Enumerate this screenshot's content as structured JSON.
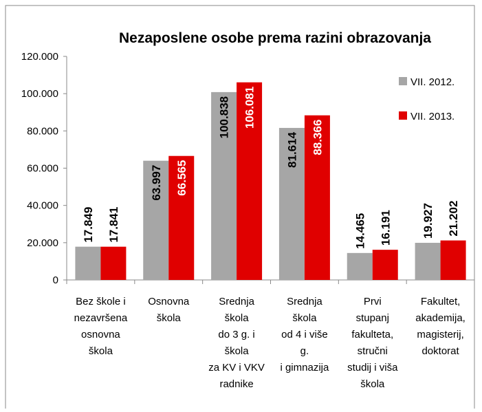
{
  "chart_data": {
    "type": "bar",
    "title": "Nezaposlene osobe prema razini obrazovanja",
    "categories": [
      [
        "Bez škole i",
        "nezavršena",
        "osnovna",
        "škola"
      ],
      [
        "Osnovna",
        "škola"
      ],
      [
        "Srednja",
        "škola",
        "do 3 g. i",
        "škola",
        "za KV i VKV",
        "radnike"
      ],
      [
        "Srednja",
        "škola",
        "od 4 i više",
        "g.",
        "i gimnazija"
      ],
      [
        "Prvi",
        "stupanj",
        "fakulteta,",
        "stručni",
        "studij i viša",
        "škola"
      ],
      [
        "Fakultet,",
        "akademija,",
        "magisterij,",
        "doktorat"
      ]
    ],
    "series": [
      {
        "name": "VII. 2012.",
        "color": "#a6a6a6",
        "values": [
          17849,
          63997,
          100838,
          81614,
          14465,
          19927
        ],
        "value_labels": [
          "17.849",
          "63.997",
          "100.838",
          "81.614",
          "14.465",
          "19.927"
        ]
      },
      {
        "name": "VII. 2013.",
        "color": "#e00000",
        "values": [
          17841,
          66565,
          106081,
          88366,
          16191,
          21202
        ],
        "value_labels": [
          "17.841",
          "66.565",
          "106.081",
          "88.366",
          "16.191",
          "21.202"
        ]
      }
    ],
    "ylim": [
      0,
      120000
    ],
    "yticks": [
      0,
      {
        "value": 20000,
        "label": "20.000"
      },
      {
        "value": 40000,
        "label": "40.000"
      },
      {
        "value": 60000,
        "label": "60.000"
      },
      {
        "value": 80000,
        "label": "80.000"
      },
      {
        "value": 100000,
        "label": "100.000"
      },
      {
        "value": 120000,
        "label": "120.000"
      }
    ],
    "legend": "top-right",
    "grid": false
  }
}
